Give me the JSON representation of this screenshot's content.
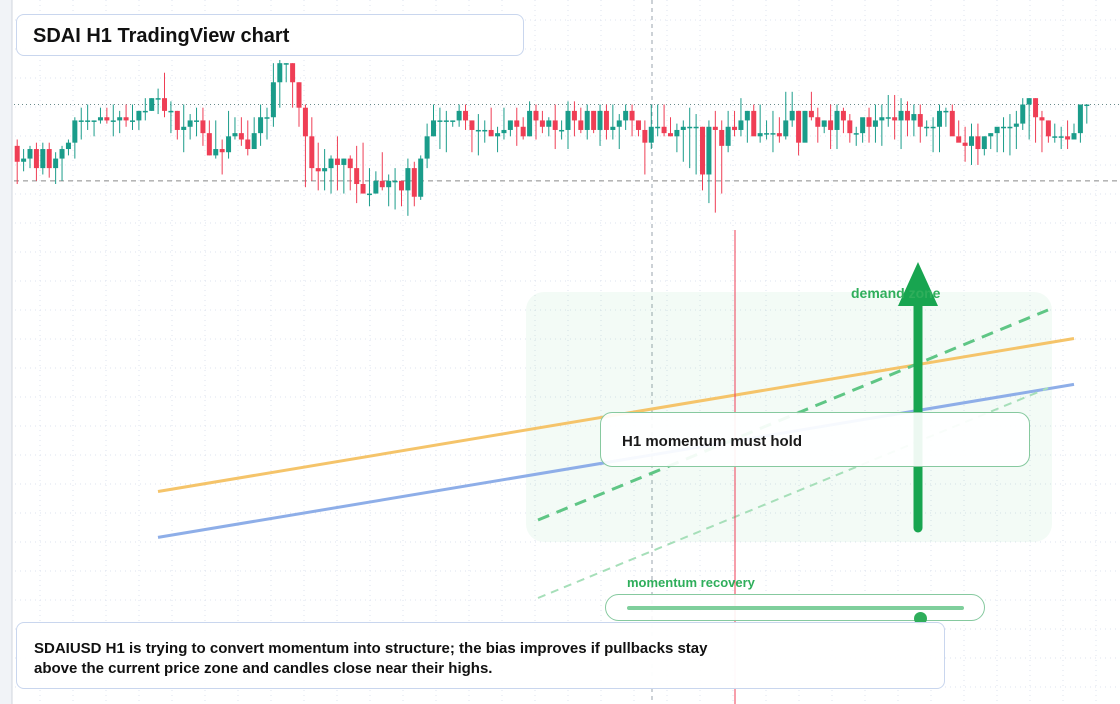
{
  "title": "SDAI H1 TradingView chart",
  "note_label": "H1 momentum must hold",
  "zone_label": "demand zone",
  "gauge": {
    "label": "momentum recovery",
    "level": 0.87
  },
  "caption": "SDAIUSD H1 is trying to convert momentum into structure; the bias improves if pullbacks stay above the current price zone and candles close near their highs.",
  "colors": {
    "up": "#1a9c8a",
    "down": "#ef3e55",
    "support_orange": "#f5c46a",
    "support_blue": "#8eaee8",
    "accent_green": "#18a550",
    "grid": "#dde3ef"
  },
  "chart_data": {
    "type": "candlestick",
    "timeframe": "H1",
    "symbol": "SDAIUSD",
    "grid": true,
    "ylim": [
      0,
      100
    ],
    "reference_levels": {
      "current_price": 86,
      "support": 62
    },
    "candles": [
      [
        73,
        68,
        75,
        61
      ],
      [
        68,
        69,
        72,
        65
      ],
      [
        69,
        72,
        73,
        66
      ],
      [
        72,
        66,
        74,
        62
      ],
      [
        66,
        72,
        74,
        64
      ],
      [
        72,
        66,
        74,
        63
      ],
      [
        66,
        69,
        71,
        61
      ],
      [
        69,
        72,
        73,
        62
      ],
      [
        72,
        74,
        75,
        70
      ],
      [
        74,
        81,
        82,
        69
      ],
      [
        81,
        81,
        85,
        75
      ],
      [
        81,
        81,
        86,
        78
      ],
      [
        81,
        81,
        81,
        76
      ],
      [
        81,
        82,
        85,
        80
      ],
      [
        82,
        81,
        85,
        80
      ],
      [
        81,
        81,
        86,
        76
      ],
      [
        81,
        82,
        84,
        77
      ],
      [
        82,
        81,
        86,
        79
      ],
      [
        81,
        81,
        86,
        78
      ],
      [
        81,
        84,
        84,
        78
      ],
      [
        84,
        84,
        88,
        81
      ],
      [
        84,
        88,
        88,
        84
      ],
      [
        88,
        88,
        91,
        83
      ],
      [
        88,
        84,
        96,
        82
      ],
      [
        84,
        84,
        87,
        77
      ],
      [
        84,
        78,
        84,
        75
      ],
      [
        78,
        79,
        86,
        71
      ],
      [
        79,
        81,
        83,
        75
      ],
      [
        81,
        81,
        85,
        76
      ],
      [
        81,
        77,
        85,
        73
      ],
      [
        77,
        70,
        81,
        70
      ],
      [
        70,
        72,
        81,
        69
      ],
      [
        72,
        71,
        75,
        64
      ],
      [
        71,
        76,
        84,
        69
      ],
      [
        76,
        77,
        82,
        75
      ],
      [
        77,
        75,
        82,
        73
      ],
      [
        75,
        72,
        81,
        70
      ],
      [
        72,
        77,
        82,
        73
      ],
      [
        77,
        82,
        86,
        73
      ],
      [
        82,
        82,
        85,
        75
      ],
      [
        82,
        93,
        99,
        79
      ],
      [
        93,
        99,
        100,
        85
      ],
      [
        99,
        99,
        99,
        93
      ],
      [
        99,
        93,
        99,
        85
      ],
      [
        93,
        85,
        93,
        79
      ],
      [
        85,
        76,
        86,
        60
      ],
      [
        76,
        66,
        82,
        62
      ],
      [
        66,
        65,
        74,
        59
      ],
      [
        65,
        66,
        72,
        59
      ],
      [
        66,
        69,
        70,
        58
      ],
      [
        69,
        67,
        76,
        59
      ],
      [
        67,
        69,
        69,
        58
      ],
      [
        69,
        66,
        70,
        59
      ],
      [
        66,
        61,
        73,
        55
      ],
      [
        61,
        58,
        74,
        58
      ],
      [
        58,
        58,
        66,
        54
      ],
      [
        58,
        62,
        65,
        58
      ],
      [
        62,
        60,
        71,
        59
      ],
      [
        60,
        62,
        64,
        54
      ],
      [
        62,
        62,
        66,
        53
      ],
      [
        62,
        59,
        62,
        54
      ],
      [
        59,
        66,
        69,
        51
      ],
      [
        66,
        57,
        68,
        54
      ],
      [
        57,
        69,
        70,
        56
      ],
      [
        69,
        76,
        80,
        66
      ],
      [
        76,
        81,
        86,
        76
      ],
      [
        81,
        81,
        85,
        72
      ],
      [
        81,
        81,
        84,
        71
      ],
      [
        81,
        81,
        81,
        79
      ],
      [
        81,
        84,
        86,
        79
      ],
      [
        84,
        81,
        86,
        78
      ],
      [
        81,
        78,
        81,
        71
      ],
      [
        78,
        78,
        83,
        70
      ],
      [
        78,
        78,
        81,
        74
      ],
      [
        78,
        76,
        85,
        78
      ],
      [
        76,
        77,
        79,
        71
      ],
      [
        77,
        78,
        85,
        75
      ],
      [
        78,
        81,
        81,
        76
      ],
      [
        81,
        79,
        85,
        73
      ],
      [
        79,
        76,
        82,
        75
      ],
      [
        76,
        84,
        87,
        76
      ],
      [
        84,
        81,
        86,
        75
      ],
      [
        81,
        79,
        84,
        77
      ],
      [
        79,
        81,
        82,
        76
      ],
      [
        81,
        78,
        86,
        72
      ],
      [
        78,
        78,
        81,
        75
      ],
      [
        78,
        84,
        87,
        72
      ],
      [
        84,
        81,
        87,
        76
      ],
      [
        81,
        78,
        85,
        77
      ],
      [
        78,
        84,
        86,
        75
      ],
      [
        84,
        78,
        84,
        77
      ],
      [
        78,
        84,
        86,
        73
      ],
      [
        84,
        78,
        86,
        75
      ],
      [
        78,
        79,
        86,
        75
      ],
      [
        79,
        81,
        83,
        72
      ],
      [
        81,
        84,
        86,
        78
      ],
      [
        84,
        81,
        86,
        76
      ],
      [
        81,
        78,
        81,
        76
      ],
      [
        78,
        74,
        81,
        64
      ],
      [
        74,
        79,
        86,
        72
      ],
      [
        79,
        79,
        86,
        76
      ],
      [
        79,
        77,
        86,
        76
      ],
      [
        77,
        76,
        82,
        76
      ],
      [
        76,
        78,
        80,
        71
      ],
      [
        78,
        79,
        81,
        68
      ],
      [
        79,
        79,
        85,
        66
      ],
      [
        79,
        79,
        83,
        64
      ],
      [
        79,
        64,
        79,
        59
      ],
      [
        64,
        79,
        81,
        55
      ],
      [
        79,
        78,
        84,
        52
      ],
      [
        78,
        73,
        81,
        58
      ],
      [
        73,
        79,
        84,
        71
      ],
      [
        79,
        78,
        84,
        76
      ],
      [
        78,
        81,
        88,
        76
      ],
      [
        81,
        84,
        84,
        74
      ],
      [
        84,
        76,
        86,
        77
      ],
      [
        76,
        77,
        86,
        74
      ],
      [
        77,
        77,
        81,
        75
      ],
      [
        77,
        77,
        84,
        71
      ],
      [
        77,
        76,
        82,
        74
      ],
      [
        76,
        81,
        90,
        75
      ],
      [
        81,
        84,
        90,
        79
      ],
      [
        84,
        74,
        84,
        70
      ],
      [
        74,
        84,
        84,
        79
      ],
      [
        84,
        82,
        90,
        81
      ],
      [
        82,
        79,
        85,
        74
      ],
      [
        79,
        81,
        81,
        77
      ],
      [
        81,
        78,
        86,
        72
      ],
      [
        78,
        84,
        86,
        72
      ],
      [
        84,
        81,
        85,
        77
      ],
      [
        81,
        77,
        83,
        74
      ],
      [
        77,
        77,
        79,
        73
      ],
      [
        77,
        82,
        81,
        74
      ],
      [
        82,
        79,
        85,
        74
      ],
      [
        79,
        81,
        86,
        74
      ],
      [
        81,
        82,
        86,
        73
      ],
      [
        82,
        82,
        89,
        79
      ],
      [
        82,
        81,
        89,
        75
      ],
      [
        81,
        84,
        88,
        72
      ],
      [
        84,
        81,
        87,
        76
      ],
      [
        81,
        83,
        86,
        76
      ],
      [
        83,
        79,
        86,
        74
      ],
      [
        79,
        79,
        81,
        76
      ],
      [
        79,
        79,
        82,
        71
      ],
      [
        79,
        84,
        86,
        71
      ],
      [
        84,
        84,
        85,
        79
      ],
      [
        84,
        76,
        86,
        77
      ],
      [
        76,
        74,
        81,
        76
      ],
      [
        74,
        73,
        79,
        68
      ],
      [
        73,
        76,
        80,
        67
      ],
      [
        76,
        72,
        80,
        67
      ],
      [
        72,
        76,
        76,
        70
      ],
      [
        76,
        77,
        77,
        72
      ],
      [
        77,
        79,
        77,
        71
      ],
      [
        79,
        79,
        82,
        71
      ],
      [
        79,
        79,
        83,
        70
      ],
      [
        79,
        80,
        84,
        72
      ],
      [
        80,
        86,
        88,
        78
      ],
      [
        86,
        88,
        88,
        75
      ],
      [
        88,
        82,
        88,
        74
      ],
      [
        82,
        81,
        84,
        71
      ],
      [
        81,
        76,
        81,
        74
      ],
      [
        76,
        76,
        80,
        74
      ],
      [
        76,
        76,
        79,
        72
      ],
      [
        76,
        75,
        81,
        72
      ],
      [
        75,
        77,
        80,
        76
      ],
      [
        77,
        86,
        86,
        74
      ],
      [
        86,
        86,
        86,
        80
      ]
    ],
    "support_lines": [
      {
        "from": [
          0,
          55
        ],
        "to": [
          1,
          65
        ]
      },
      {
        "from": [
          0,
          52
        ],
        "to": [
          1,
          62
        ]
      }
    ]
  }
}
